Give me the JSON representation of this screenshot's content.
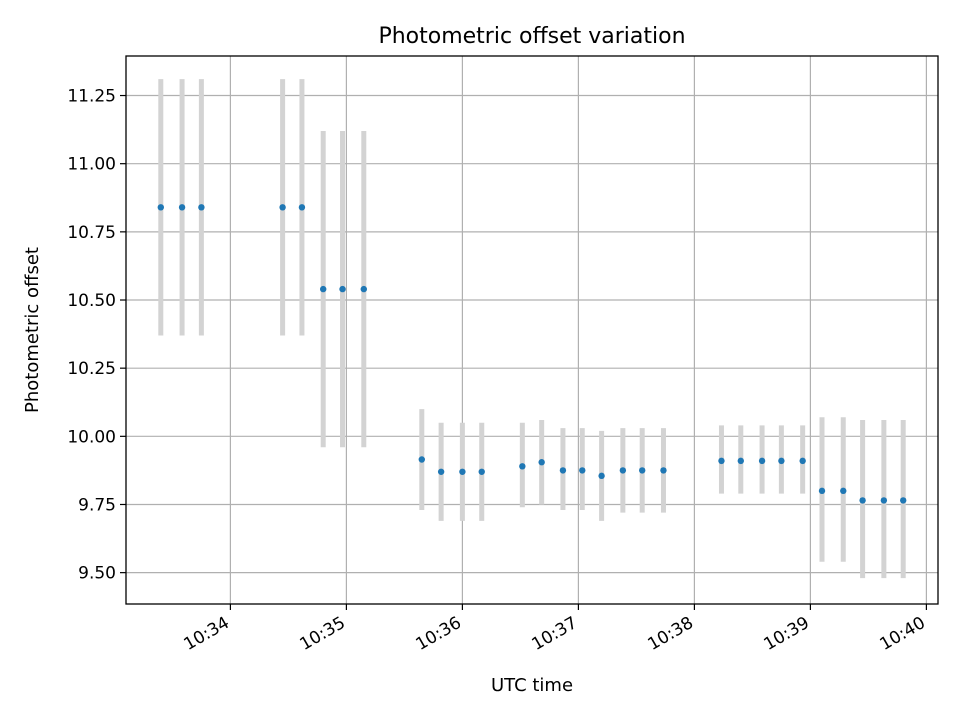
{
  "chart_data": {
    "type": "scatter",
    "title": "Photometric offset variation",
    "xlabel": "UTC time",
    "ylabel": "Photometric offset",
    "xlim": [
      "10:33:06",
      "10:40:06"
    ],
    "ylim": [
      9.385,
      11.395
    ],
    "x_ticks": [
      "10:34",
      "10:35",
      "10:36",
      "10:37",
      "10:38",
      "10:39",
      "10:40"
    ],
    "y_ticks": [
      "9.50",
      "9.75",
      "10.00",
      "10.25",
      "10.50",
      "10.75",
      "11.00",
      "11.25"
    ],
    "grid": true,
    "colors": {
      "points": "#1f77b4",
      "error_bars": "#d3d3d3",
      "grid": "#b0b0b0"
    },
    "series": [
      {
        "x": [
          "10:33:24",
          "10:33:35",
          "10:33:45",
          "10:34:27",
          "10:34:37",
          "10:34:48",
          "10:34:58",
          "10:35:09",
          "10:35:39",
          "10:35:49",
          "10:36:00",
          "10:36:10",
          "10:36:31",
          "10:36:41",
          "10:36:52",
          "10:37:02",
          "10:37:12",
          "10:37:23",
          "10:37:33",
          "10:37:44",
          "10:38:14",
          "10:38:24",
          "10:38:35",
          "10:38:45",
          "10:38:56",
          "10:39:06",
          "10:39:17",
          "10:39:27",
          "10:39:38",
          "10:39:48"
        ],
        "y": [
          10.84,
          10.84,
          10.84,
          10.84,
          10.84,
          10.54,
          10.54,
          10.54,
          9.915,
          9.87,
          9.87,
          9.87,
          9.89,
          9.905,
          9.875,
          9.875,
          9.855,
          9.875,
          9.875,
          9.875,
          9.91,
          9.91,
          9.91,
          9.91,
          9.91,
          9.8,
          9.8,
          9.765,
          9.765,
          9.765
        ],
        "yerr_low": [
          10.37,
          10.37,
          10.37,
          10.37,
          10.37,
          9.96,
          9.96,
          9.96,
          9.73,
          9.69,
          9.69,
          9.69,
          9.74,
          9.75,
          9.73,
          9.73,
          9.69,
          9.72,
          9.72,
          9.72,
          9.79,
          9.79,
          9.79,
          9.79,
          9.79,
          9.54,
          9.54,
          9.48,
          9.48,
          9.48
        ],
        "yerr_high": [
          11.31,
          11.31,
          11.31,
          11.31,
          11.31,
          11.12,
          11.12,
          11.12,
          10.1,
          10.05,
          10.05,
          10.05,
          10.05,
          10.06,
          10.03,
          10.03,
          10.02,
          10.03,
          10.03,
          10.03,
          10.04,
          10.04,
          10.04,
          10.04,
          10.04,
          10.07,
          10.07,
          10.06,
          10.06,
          10.06
        ]
      }
    ]
  }
}
